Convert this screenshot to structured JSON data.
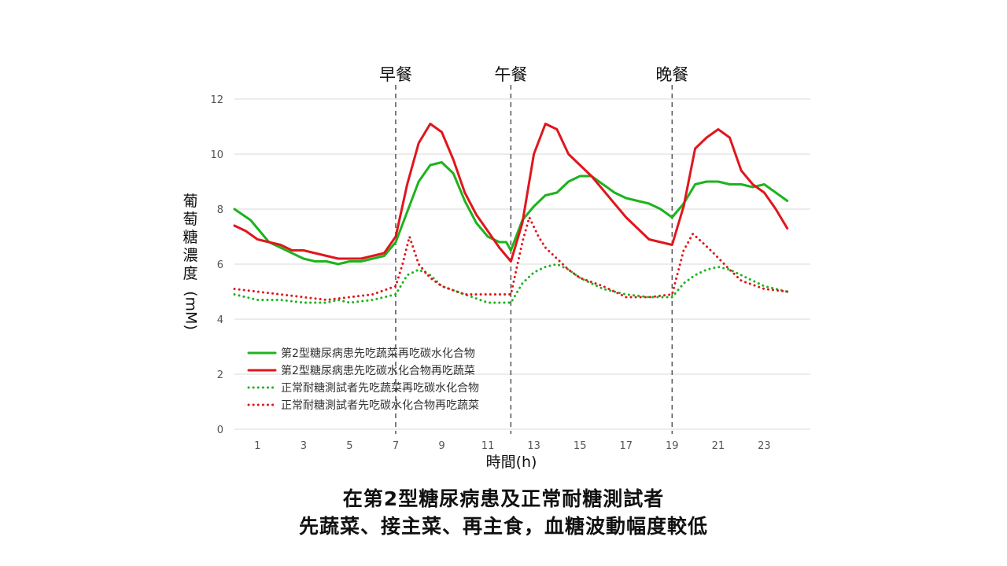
{
  "colors": {
    "green": "#1db31d",
    "red": "#e0161d",
    "grid": "#d9d9d9",
    "divider": "#555555"
  },
  "chart_data": {
    "type": "line",
    "title": "",
    "xlabel": "時間(h)",
    "ylabel": "葡萄糖濃度(mM)",
    "xlim": [
      0,
      25
    ],
    "ylim": [
      0,
      12
    ],
    "xticks": [
      1,
      3,
      5,
      7,
      9,
      11,
      13,
      15,
      17,
      19,
      21,
      23
    ],
    "yticks": [
      0,
      2,
      4,
      6,
      8,
      10,
      12
    ],
    "grid": "horizontal",
    "legend_position": "bottom-left",
    "meal_markers": [
      {
        "label": "早餐",
        "x": 7
      },
      {
        "label": "午餐",
        "x": 12
      },
      {
        "label": "晚餐",
        "x": 19
      }
    ],
    "series": [
      {
        "name": "第2型糖尿病患先吃蔬菜再吃碳水化合物",
        "color": "#1db31d",
        "style": "solid",
        "points": [
          [
            0,
            8.0
          ],
          [
            0.7,
            7.6
          ],
          [
            1.5,
            6.8
          ],
          [
            2,
            6.6
          ],
          [
            2.5,
            6.4
          ],
          [
            3,
            6.2
          ],
          [
            3.5,
            6.1
          ],
          [
            4,
            6.1
          ],
          [
            4.5,
            6.0
          ],
          [
            5,
            6.1
          ],
          [
            5.5,
            6.1
          ],
          [
            6,
            6.2
          ],
          [
            6.5,
            6.3
          ],
          [
            7,
            6.8
          ],
          [
            7.5,
            7.9
          ],
          [
            8,
            9.0
          ],
          [
            8.5,
            9.6
          ],
          [
            9,
            9.7
          ],
          [
            9.5,
            9.3
          ],
          [
            10,
            8.3
          ],
          [
            10.5,
            7.5
          ],
          [
            11,
            7.0
          ],
          [
            11.5,
            6.8
          ],
          [
            11.8,
            6.8
          ],
          [
            12,
            6.5
          ],
          [
            12.5,
            7.6
          ],
          [
            13,
            8.1
          ],
          [
            13.5,
            8.5
          ],
          [
            14,
            8.6
          ],
          [
            14.5,
            9.0
          ],
          [
            15,
            9.2
          ],
          [
            15.5,
            9.2
          ],
          [
            16,
            8.9
          ],
          [
            16.5,
            8.6
          ],
          [
            17,
            8.4
          ],
          [
            17.5,
            8.3
          ],
          [
            18,
            8.2
          ],
          [
            18.5,
            8.0
          ],
          [
            19,
            7.7
          ],
          [
            19.5,
            8.2
          ],
          [
            20,
            8.9
          ],
          [
            20.5,
            9.0
          ],
          [
            21,
            9.0
          ],
          [
            21.5,
            8.9
          ],
          [
            22,
            8.9
          ],
          [
            22.5,
            8.8
          ],
          [
            23,
            8.9
          ],
          [
            23.5,
            8.6
          ],
          [
            24,
            8.3
          ]
        ]
      },
      {
        "name": "第2型糖尿病患先吃碳水化合物再吃蔬菜",
        "color": "#e0161d",
        "style": "solid",
        "points": [
          [
            0,
            7.4
          ],
          [
            0.5,
            7.2
          ],
          [
            1,
            6.9
          ],
          [
            1.5,
            6.8
          ],
          [
            2,
            6.7
          ],
          [
            2.5,
            6.5
          ],
          [
            3,
            6.5
          ],
          [
            3.5,
            6.4
          ],
          [
            4,
            6.3
          ],
          [
            4.5,
            6.2
          ],
          [
            5,
            6.2
          ],
          [
            5.5,
            6.2
          ],
          [
            6,
            6.3
          ],
          [
            6.5,
            6.4
          ],
          [
            7,
            7.0
          ],
          [
            7.5,
            8.9
          ],
          [
            8,
            10.4
          ],
          [
            8.5,
            11.1
          ],
          [
            9,
            10.8
          ],
          [
            9.5,
            9.8
          ],
          [
            10,
            8.6
          ],
          [
            10.5,
            7.8
          ],
          [
            11,
            7.2
          ],
          [
            11.5,
            6.6
          ],
          [
            12,
            6.1
          ],
          [
            12.5,
            7.5
          ],
          [
            13,
            10.0
          ],
          [
            13.5,
            11.1
          ],
          [
            14,
            10.9
          ],
          [
            14.5,
            10.0
          ],
          [
            15,
            9.6
          ],
          [
            15.5,
            9.2
          ],
          [
            16,
            8.7
          ],
          [
            16.5,
            8.2
          ],
          [
            17,
            7.7
          ],
          [
            17.5,
            7.3
          ],
          [
            18,
            6.9
          ],
          [
            18.5,
            6.8
          ],
          [
            19,
            6.7
          ],
          [
            19.5,
            8.1
          ],
          [
            20,
            10.2
          ],
          [
            20.5,
            10.6
          ],
          [
            21,
            10.9
          ],
          [
            21.5,
            10.6
          ],
          [
            22,
            9.4
          ],
          [
            22.5,
            8.9
          ],
          [
            23,
            8.6
          ],
          [
            23.5,
            8.0
          ],
          [
            24,
            7.3
          ]
        ]
      },
      {
        "name": "正常耐糖測試者先吃蔬菜再吃碳水化合物",
        "color": "#1db31d",
        "style": "dotted",
        "points": [
          [
            0,
            4.9
          ],
          [
            1,
            4.7
          ],
          [
            2,
            4.7
          ],
          [
            3,
            4.6
          ],
          [
            4,
            4.6
          ],
          [
            4.5,
            4.7
          ],
          [
            5,
            4.6
          ],
          [
            6,
            4.7
          ],
          [
            7,
            4.9
          ],
          [
            7.5,
            5.6
          ],
          [
            8,
            5.8
          ],
          [
            8.5,
            5.6
          ],
          [
            9,
            5.2
          ],
          [
            10,
            4.9
          ],
          [
            11,
            4.6
          ],
          [
            12,
            4.6
          ],
          [
            12.5,
            5.3
          ],
          [
            13,
            5.7
          ],
          [
            13.5,
            5.9
          ],
          [
            14,
            6.0
          ],
          [
            14.5,
            5.8
          ],
          [
            15,
            5.5
          ],
          [
            16,
            5.1
          ],
          [
            17,
            4.9
          ],
          [
            18,
            4.8
          ],
          [
            19,
            4.8
          ],
          [
            19.5,
            5.3
          ],
          [
            20,
            5.6
          ],
          [
            20.5,
            5.8
          ],
          [
            21,
            5.9
          ],
          [
            21.5,
            5.8
          ],
          [
            22,
            5.6
          ],
          [
            23,
            5.2
          ],
          [
            24,
            5.0
          ]
        ]
      },
      {
        "name": "正常耐糖測試者先吃碳水化合物再吃蔬菜",
        "color": "#e0161d",
        "style": "dotted",
        "points": [
          [
            0,
            5.1
          ],
          [
            1,
            5.0
          ],
          [
            2,
            4.9
          ],
          [
            3,
            4.8
          ],
          [
            4,
            4.7
          ],
          [
            5,
            4.8
          ],
          [
            6,
            4.9
          ],
          [
            7,
            5.2
          ],
          [
            7.3,
            6.0
          ],
          [
            7.6,
            7.0
          ],
          [
            8,
            6.0
          ],
          [
            8.5,
            5.5
          ],
          [
            9,
            5.2
          ],
          [
            10,
            4.9
          ],
          [
            11,
            4.9
          ],
          [
            12,
            4.9
          ],
          [
            12.5,
            6.8
          ],
          [
            12.8,
            7.7
          ],
          [
            13.2,
            7.0
          ],
          [
            13.5,
            6.6
          ],
          [
            14,
            6.2
          ],
          [
            14.5,
            5.8
          ],
          [
            15,
            5.5
          ],
          [
            16,
            5.2
          ],
          [
            17,
            4.8
          ],
          [
            18,
            4.8
          ],
          [
            19,
            4.9
          ],
          [
            19.5,
            6.5
          ],
          [
            19.9,
            7.1
          ],
          [
            20.3,
            6.8
          ],
          [
            20.8,
            6.4
          ],
          [
            21.5,
            5.8
          ],
          [
            22,
            5.4
          ],
          [
            23,
            5.1
          ],
          [
            24,
            5.0
          ]
        ]
      }
    ]
  },
  "caption": {
    "line1": "在第2型糖尿病患及正常耐糖測試者",
    "line2": "先蔬菜、接主菜、再主食，血糖波動幅度較低"
  }
}
